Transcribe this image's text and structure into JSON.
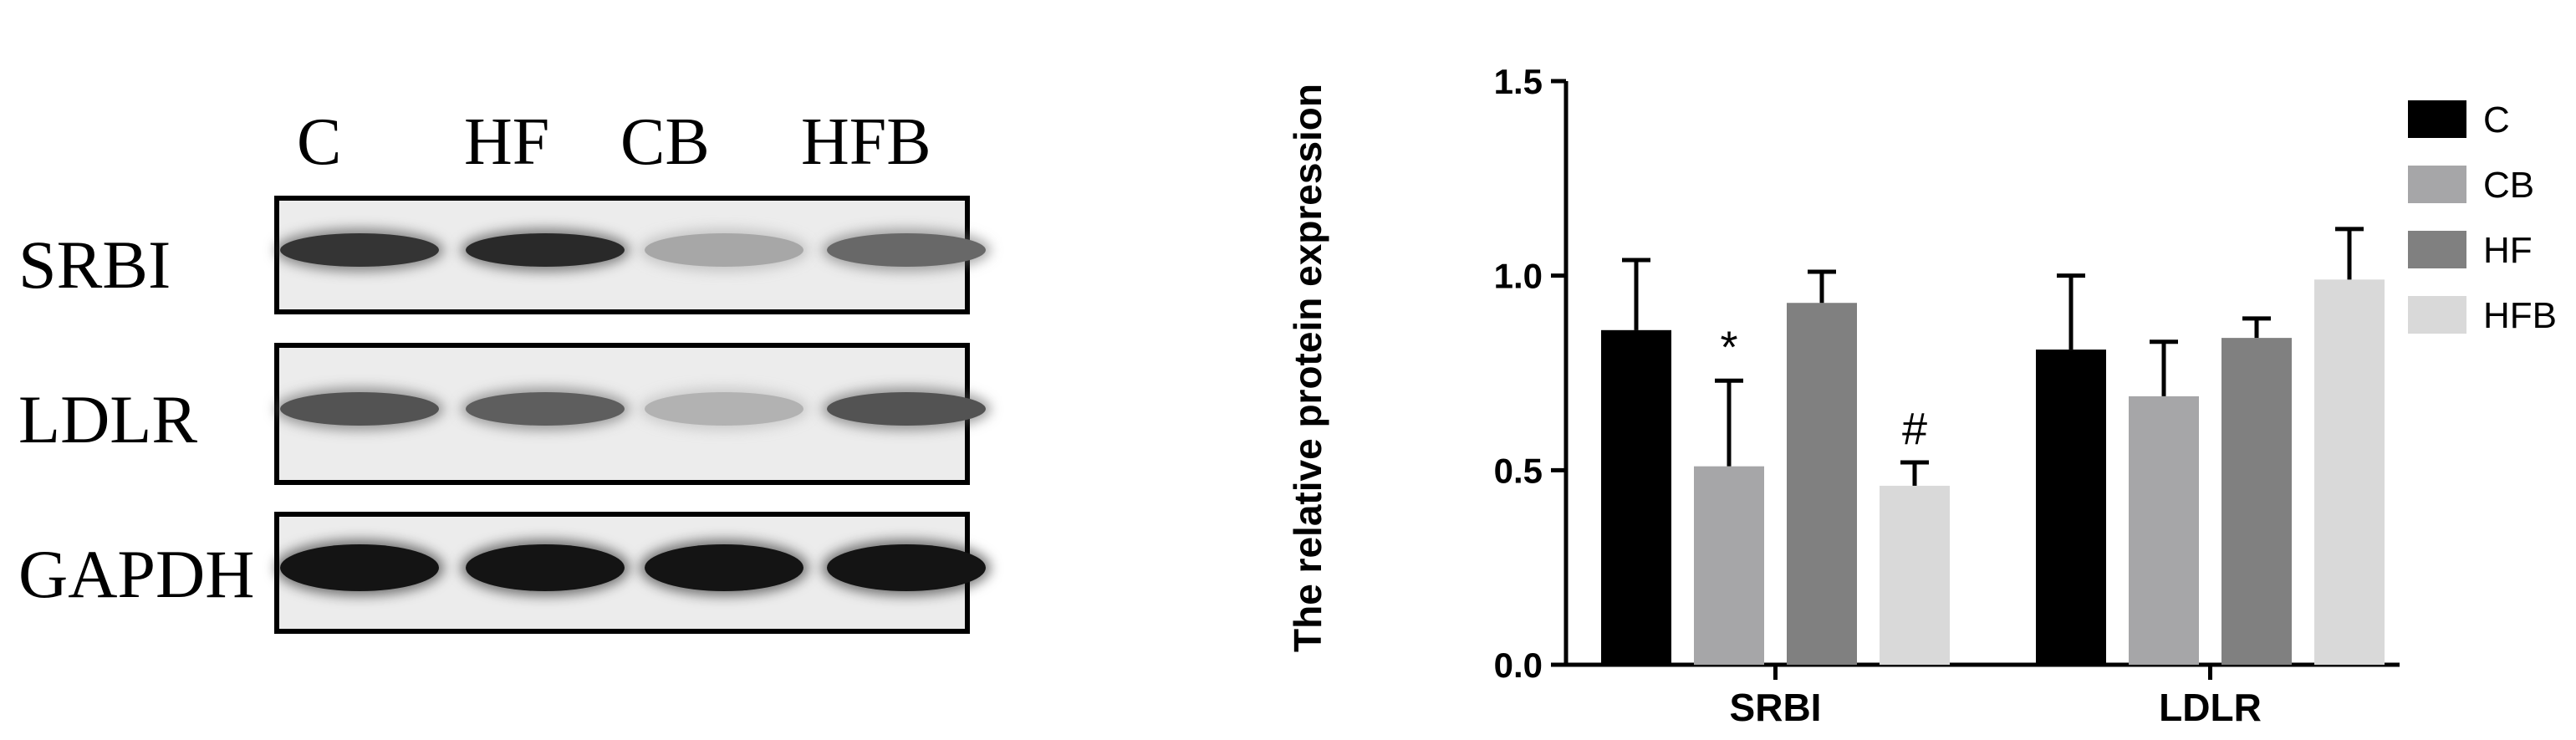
{
  "blot": {
    "lanes": [
      "C",
      "HF",
      "CB",
      "HFB"
    ],
    "rows": [
      {
        "label": "SRBI",
        "band_intensity": [
          0.85,
          0.9,
          0.3,
          0.6
        ]
      },
      {
        "label": "LDLR",
        "band_intensity": [
          0.7,
          0.65,
          0.25,
          0.7
        ]
      },
      {
        "label": "GAPDH",
        "band_intensity": [
          1.0,
          1.0,
          1.0,
          1.0
        ]
      }
    ]
  },
  "chart_data": {
    "type": "bar",
    "ylabel": "The relative protein expression",
    "xlabel": "",
    "ylim": [
      0,
      1.5
    ],
    "yticks": [
      "0.0",
      "0.5",
      "1.0",
      "1.5"
    ],
    "categories": [
      "SRBI",
      "LDLR"
    ],
    "series": [
      {
        "name": "C",
        "color": "#000000",
        "values": [
          0.86,
          0.81
        ],
        "errors": [
          0.18,
          0.19
        ]
      },
      {
        "name": "CB",
        "color": "#a6a6a8",
        "values": [
          0.51,
          0.69
        ],
        "errors": [
          0.22,
          0.14
        ]
      },
      {
        "name": "HF",
        "color": "#808080",
        "values": [
          0.93,
          0.84
        ],
        "errors": [
          0.08,
          0.05
        ]
      },
      {
        "name": "HFB",
        "color": "#d9d9d9",
        "values": [
          0.46,
          0.99
        ],
        "errors": [
          0.06,
          0.13
        ]
      }
    ],
    "annotations": [
      {
        "text": "*",
        "series": 1,
        "category": 0
      },
      {
        "text": "#",
        "series": 3,
        "category": 0
      }
    ],
    "legend_position": "right"
  }
}
